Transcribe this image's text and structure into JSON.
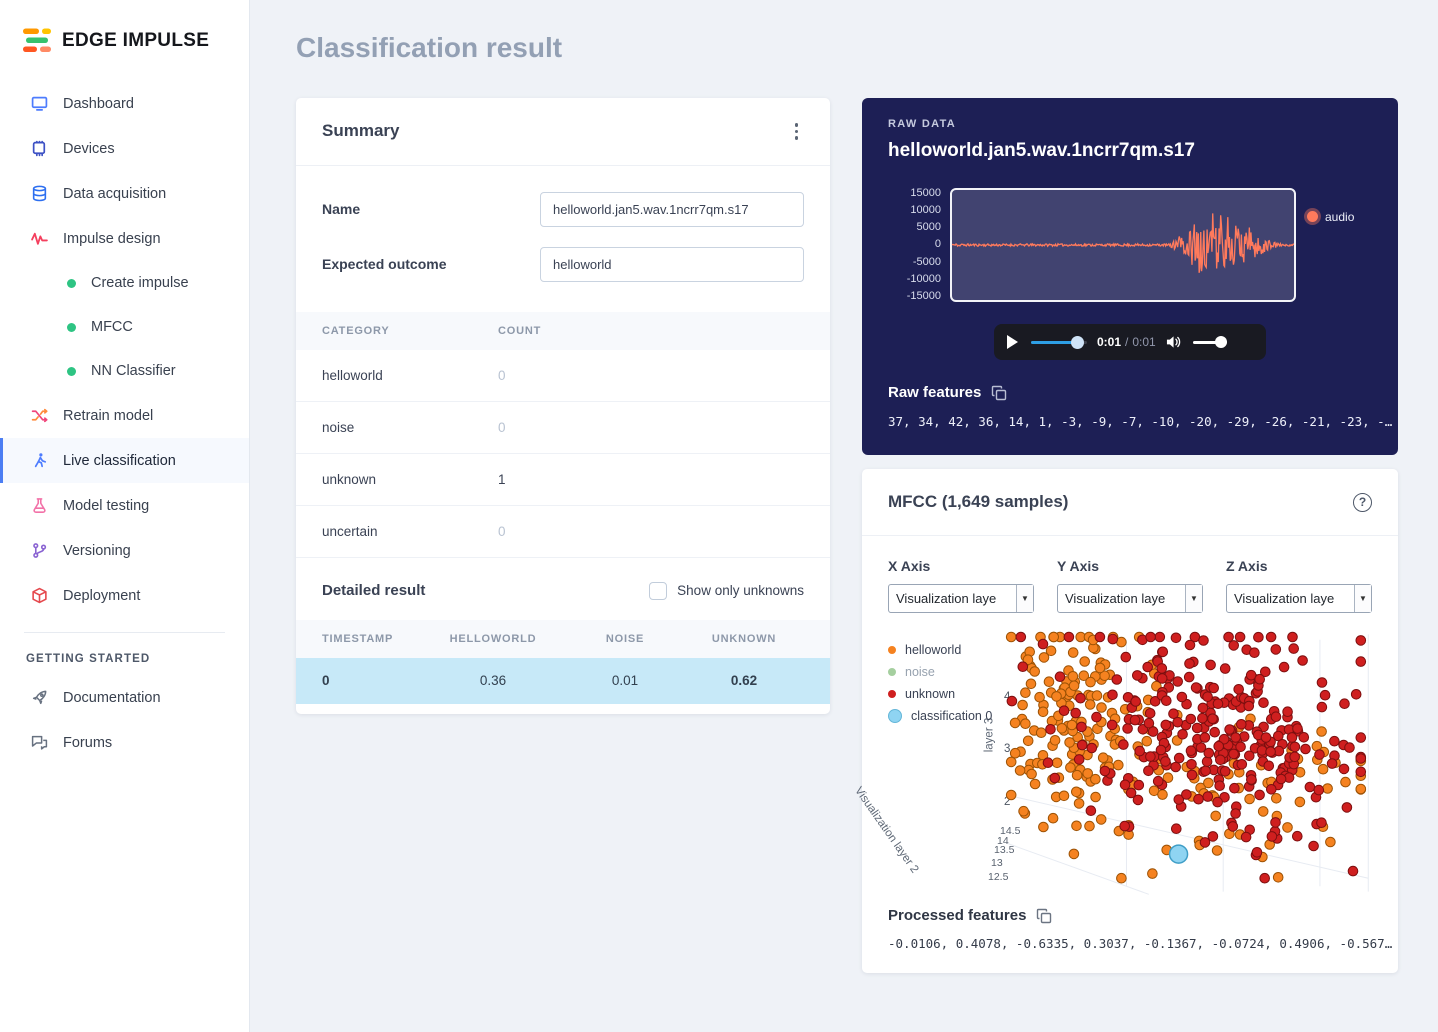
{
  "theme": {
    "accent_blue": "#4c7ef3",
    "navy_card": "#1d1f55",
    "highlight_row": "#c7e9f8",
    "waveform_color": "#ff7a5c"
  },
  "sidebar": {
    "logo_text": "EDGE IMPULSE",
    "items": [
      {
        "label": "Dashboard"
      },
      {
        "label": "Devices"
      },
      {
        "label": "Data acquisition"
      },
      {
        "label": "Impulse design"
      },
      {
        "label": "Create impulse"
      },
      {
        "label": "MFCC"
      },
      {
        "label": "NN Classifier"
      },
      {
        "label": "Retrain model"
      },
      {
        "label": "Live classification"
      },
      {
        "label": "Model testing"
      },
      {
        "label": "Versioning"
      },
      {
        "label": "Deployment"
      }
    ],
    "section_header": "GETTING STARTED",
    "secondary_items": [
      {
        "label": "Documentation"
      },
      {
        "label": "Forums"
      }
    ]
  },
  "page": {
    "title": "Classification result"
  },
  "summary": {
    "title": "Summary",
    "name_label": "Name",
    "name_value": "helloworld.jan5.wav.1ncrr7qm.s17",
    "outcome_label": "Expected outcome",
    "outcome_value": "helloworld",
    "category_headers": [
      "CATEGORY",
      "COUNT"
    ],
    "categories": [
      {
        "name": "helloworld",
        "count": "0"
      },
      {
        "name": "noise",
        "count": "0"
      },
      {
        "name": "unknown",
        "count": "1"
      },
      {
        "name": "uncertain",
        "count": "0"
      }
    ],
    "detailed_title": "Detailed result",
    "checkbox_label": "Show only unknowns",
    "detail_headers": [
      "TIMESTAMP",
      "HELLOWORLD",
      "NOISE",
      "UNKNOWN"
    ],
    "detail_row": {
      "timestamp": "0",
      "helloworld": "0.36",
      "noise": "0.01",
      "unknown": "0.62"
    }
  },
  "raw_data": {
    "label": "RAW DATA",
    "title": "helloworld.jan5.wav.1ncrr7qm.s17",
    "player": {
      "current": "0:01",
      "separator": "/",
      "total": "0:01"
    },
    "features_title": "Raw features",
    "features": "37, 34, 42, 36, 14, 1, -3, -9, -7, -10, -20, -29, -26, -21, -23, -…"
  },
  "mfcc": {
    "title": "MFCC (1,649 samples)",
    "axes": [
      {
        "label": "X Axis",
        "value": "Visualization laye"
      },
      {
        "label": "Y Axis",
        "value": "Visualization laye"
      },
      {
        "label": "Z Axis",
        "value": "Visualization laye"
      }
    ],
    "features_title": "Processed features",
    "features": "-0.0106, 0.4078, -0.6335, 0.3037, -0.1367, -0.0724, 0.4906, -0.567…"
  },
  "chart_data": [
    {
      "id": "raw-audio-waveform",
      "type": "line",
      "title": "helloworld.jan5.wav.1ncrr7qm.s17",
      "ylim": [
        -15000,
        15000
      ],
      "yticks": [
        15000,
        10000,
        5000,
        0,
        -5000,
        -10000,
        -15000
      ],
      "series": [
        {
          "name": "audio",
          "color": "#ff7a5c"
        }
      ],
      "flat_amplitude": 350,
      "start_blip": {
        "end": 0.03,
        "amplitude": 1500
      },
      "burst": {
        "start": 0.63,
        "peak": 0.76,
        "end": 0.97,
        "max_amplitude": 14200
      },
      "samples": 430,
      "seed": 11
    },
    {
      "id": "mfcc-visualization",
      "type": "scatter",
      "title": "MFCC (1,649 samples)",
      "legend": [
        {
          "label": "helloworld",
          "color": "#f58220"
        },
        {
          "label": "noise",
          "color": "#a5cf9f"
        },
        {
          "label": "unknown",
          "color": "#cf1f1f"
        },
        {
          "label": "classification 0",
          "color": "#8fd4f2"
        }
      ],
      "z_axis_label": "layer 3",
      "z_ticks": [
        4,
        3,
        2
      ],
      "x_axis_label": "Visualization layer 2",
      "x_ticks": [
        14.5,
        14,
        13.5,
        13,
        12.5
      ],
      "clusters": [
        {
          "series": "helloworld",
          "color": "#f58220",
          "stroke": "#9c5205",
          "count": 150,
          "cx": 0.2,
          "cy": 0.33,
          "sx": 0.1,
          "sy": 0.2
        },
        {
          "series": "helloworld",
          "color": "#f58220",
          "stroke": "#9c5205",
          "count": 70,
          "cx": 0.6,
          "cy": 0.58,
          "sx": 0.23,
          "sy": 0.16
        },
        {
          "series": "unknown",
          "color": "#cf1f1f",
          "stroke": "#7c0f0f",
          "count": 240,
          "cx": 0.52,
          "cy": 0.35,
          "sx": 0.17,
          "sy": 0.19
        },
        {
          "series": "unknown",
          "color": "#cf1f1f",
          "stroke": "#7c0f0f",
          "count": 60,
          "cx": 0.72,
          "cy": 0.52,
          "sx": 0.13,
          "sy": 0.14
        }
      ],
      "classification_point": {
        "x": 0.48,
        "y": 0.84,
        "color": "#8fd4f2",
        "stroke": "#3f9ec7"
      },
      "seed": 23
    }
  ]
}
